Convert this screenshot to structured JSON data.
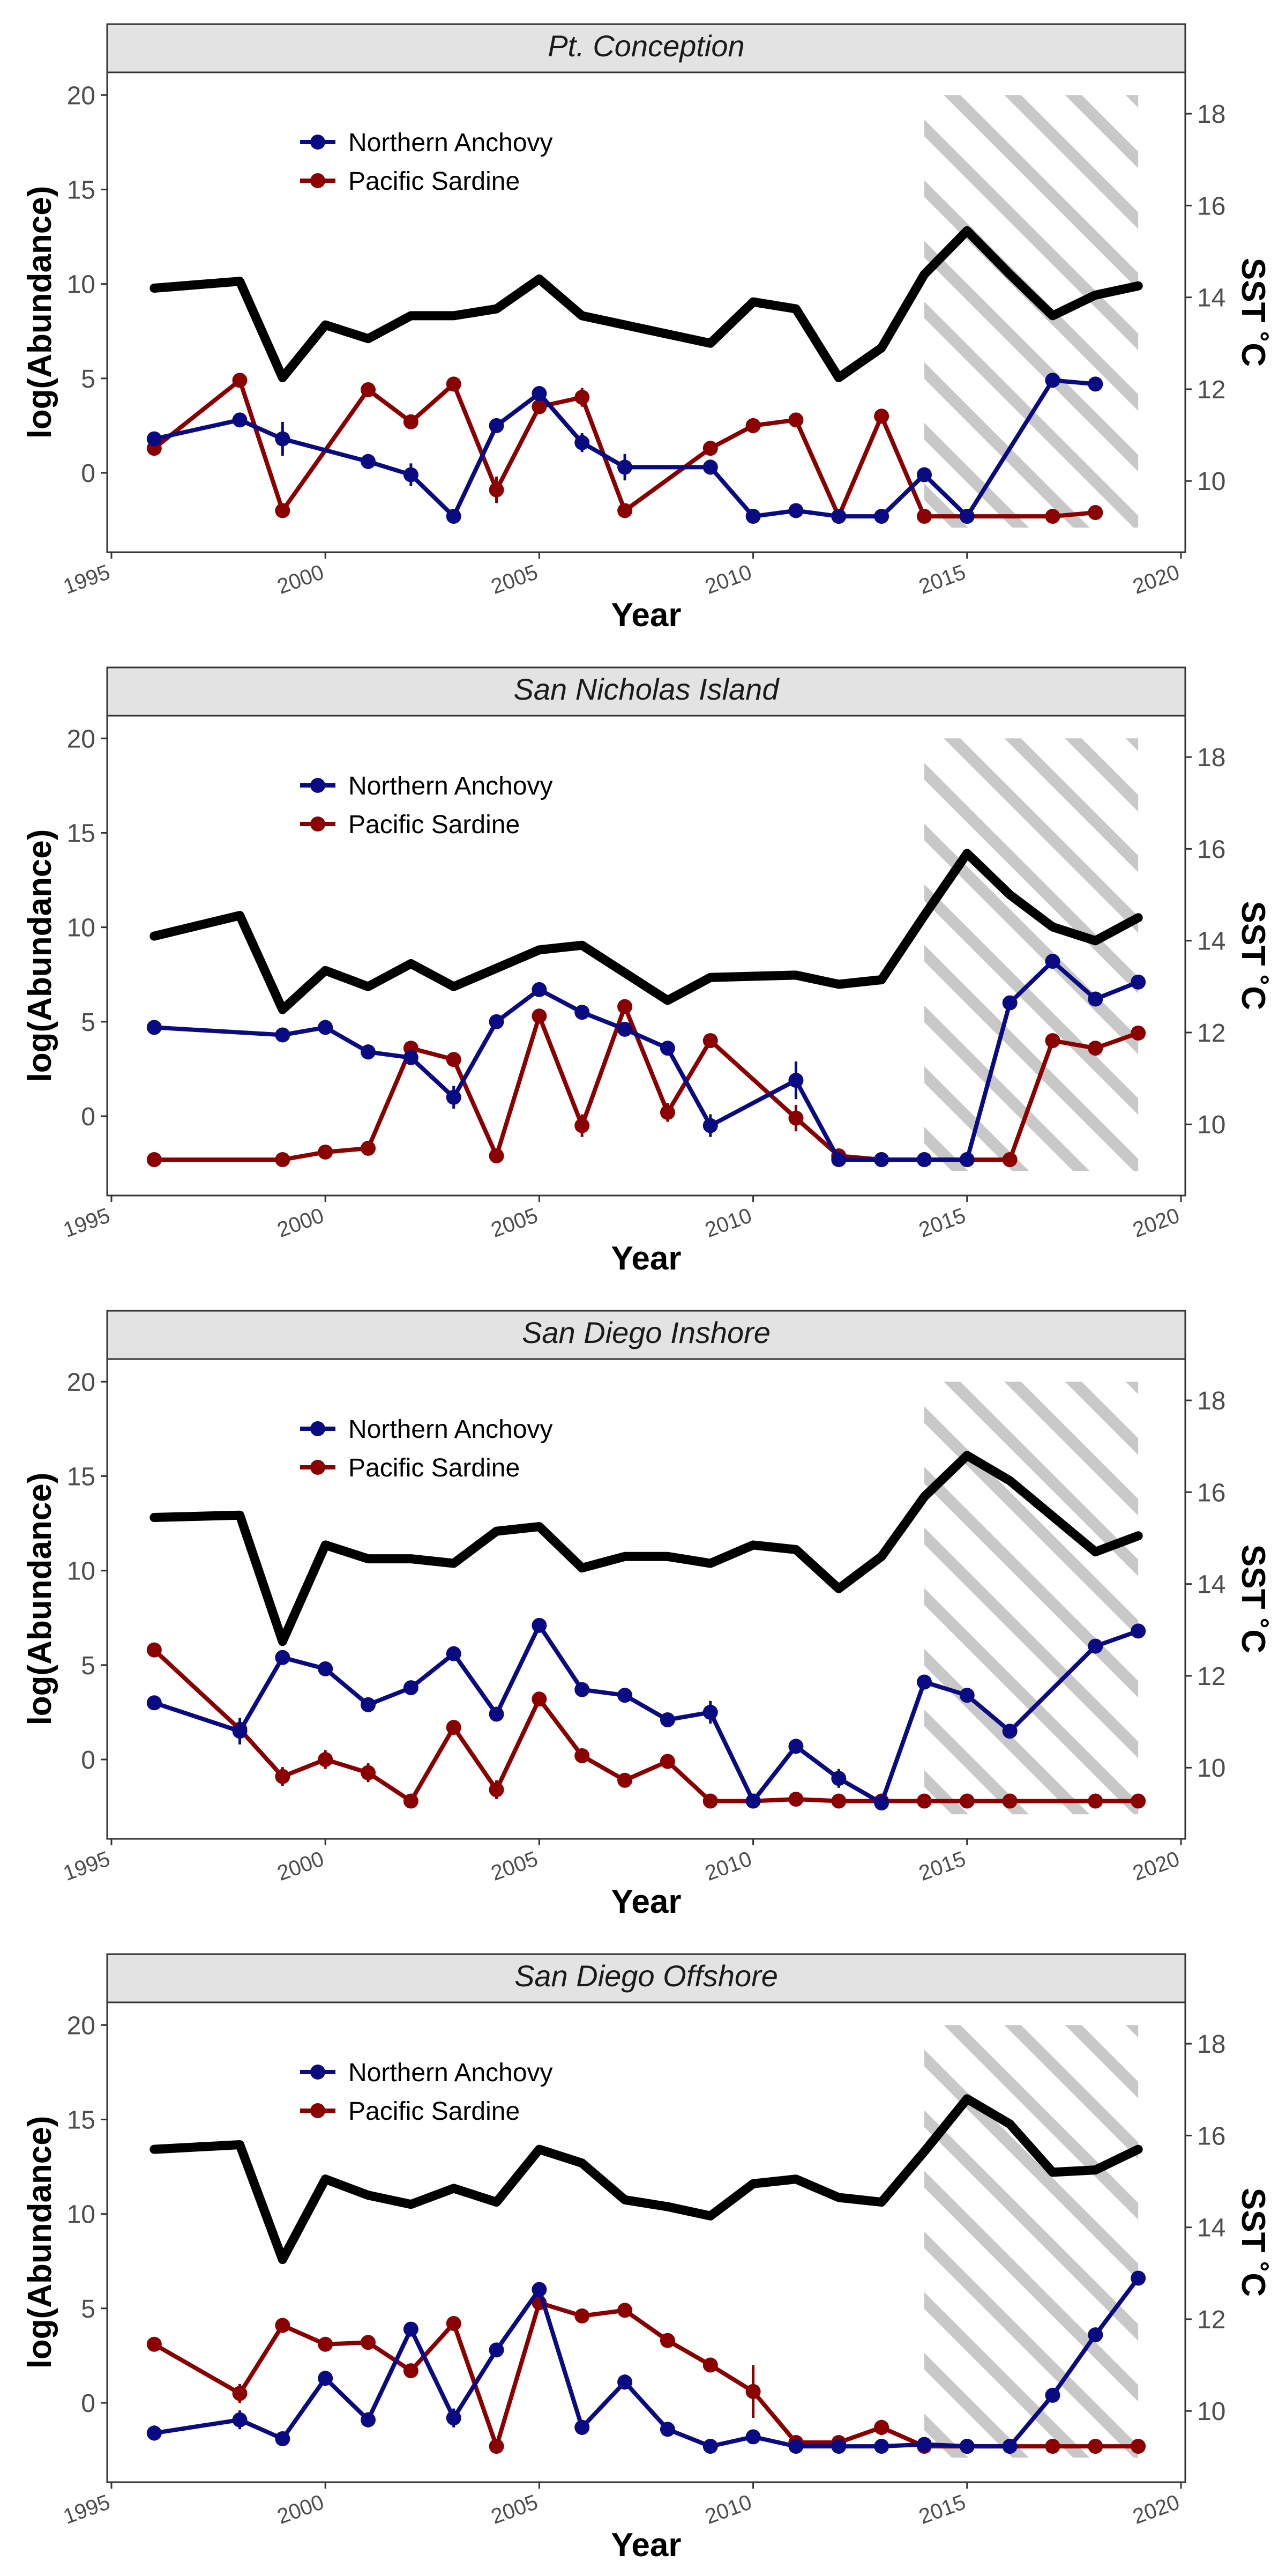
{
  "x_axis": {
    "label": "Year",
    "ticks": [
      1995,
      2000,
      2005,
      2010,
      2015,
      2020
    ]
  },
  "y_axis_left": {
    "label": "log(Abundance)",
    "ticks": [
      0,
      5,
      10,
      15,
      20
    ]
  },
  "y_axis_right": {
    "label": "SST ˚C",
    "ticks": [
      10,
      12,
      14,
      16,
      18
    ]
  },
  "colors": {
    "anchovy": "#0a0a82",
    "sardine": "#8b0000",
    "sst": "#000000",
    "strip": "#e3e3e3",
    "hatch": "#c8c8c8"
  },
  "chart_data": [
    {
      "type": "line",
      "title": "Pt. Conception",
      "xlabel": "Year",
      "ylabel": "log(Abundance)",
      "y2label": "SST ˚C",
      "xlim": [
        1994.9,
        2020.1
      ],
      "ylim": [
        -4.2,
        21.2
      ],
      "y2lim": [
        8.45,
        18.9
      ],
      "hatched_period": [
        2014,
        2019
      ],
      "legend_position": "top-left",
      "series": [
        {
          "name": "Northern Anchovy",
          "axis": "left",
          "x": [
            1996,
            1998,
            1999,
            2001,
            2002,
            2003,
            2004,
            2005,
            2006,
            2007,
            2009,
            2010,
            2011,
            2012,
            2013,
            2014,
            2015,
            2017,
            2018
          ],
          "values": [
            1.8,
            2.8,
            1.8,
            0.6,
            -0.1,
            -2.3,
            2.5,
            4.2,
            1.6,
            0.3,
            0.3,
            -2.3,
            -2.0,
            -2.3,
            -2.3,
            -0.1,
            -2.3,
            4.9,
            4.7
          ],
          "err": [
            0.2,
            0.2,
            0.9,
            0.4,
            0.6,
            0.1,
            0.3,
            0.3,
            0.5,
            0.7,
            0.4,
            0.1,
            0.2,
            0.1,
            0.1,
            0.2,
            0.1,
            0.2,
            0.2
          ]
        },
        {
          "name": "Pacific Sardine",
          "axis": "left",
          "x": [
            1996,
            1998,
            1999,
            2001,
            2002,
            2003,
            2004,
            2005,
            2006,
            2007,
            2009,
            2010,
            2011,
            2012,
            2013,
            2014,
            2015,
            2017,
            2018
          ],
          "values": [
            1.3,
            4.9,
            -2.0,
            4.4,
            2.7,
            4.7,
            -0.9,
            3.5,
            4.0,
            -2.0,
            1.3,
            2.5,
            2.8,
            -2.3,
            3.0,
            -2.3,
            -2.3,
            -2.3,
            -2.1
          ],
          "err": [
            0.3,
            0.2,
            0.2,
            0.2,
            0.2,
            0.2,
            0.7,
            0.3,
            0.5,
            0.2,
            0.4,
            0.4,
            0.2,
            0.1,
            0.2,
            0.1,
            0.1,
            0.1,
            0.2
          ]
        },
        {
          "name": "",
          "axis": "right",
          "x": [
            1996,
            1998,
            1999,
            2000,
            2001,
            2002,
            2003,
            2004,
            2005,
            2006,
            2007,
            2008,
            2009,
            2010,
            2011,
            2012,
            2013,
            2014,
            2015,
            2016,
            2017,
            2018,
            2019
          ],
          "values": [
            14.2,
            14.35,
            12.25,
            13.4,
            13.1,
            13.6,
            13.6,
            13.75,
            14.4,
            13.6,
            13.4,
            13.2,
            13.0,
            13.9,
            13.75,
            12.25,
            12.9,
            14.5,
            15.45,
            14.5,
            13.6,
            14.05,
            14.25
          ]
        }
      ]
    },
    {
      "type": "line",
      "title": "San Nicholas Island",
      "xlabel": "Year",
      "ylabel": "log(Abundance)",
      "y2label": "SST ˚C",
      "xlim": [
        1994.9,
        2020.1
      ],
      "ylim": [
        -4.2,
        21.2
      ],
      "y2lim": [
        8.45,
        18.9
      ],
      "hatched_period": [
        2014,
        2019
      ],
      "legend_position": "top-left",
      "series": [
        {
          "name": "Northern Anchovy",
          "axis": "left",
          "x": [
            1996,
            1999,
            2000,
            2001,
            2002,
            2003,
            2004,
            2005,
            2006,
            2007,
            2008,
            2009,
            2011,
            2012,
            2013,
            2014,
            2015,
            2016,
            2017,
            2018,
            2019
          ],
          "values": [
            4.7,
            4.3,
            4.7,
            3.4,
            3.1,
            1.0,
            5.0,
            6.7,
            5.5,
            4.6,
            3.6,
            -0.5,
            1.9,
            -2.3,
            -2.3,
            -2.3,
            -2.3,
            6.0,
            8.2,
            6.2,
            7.1
          ],
          "err": [
            0.2,
            0.2,
            0.2,
            0.4,
            0.3,
            0.6,
            0.2,
            0.2,
            0.2,
            0.3,
            0.3,
            0.6,
            1.0,
            0.1,
            0.1,
            0.1,
            0.1,
            0.2,
            0.3,
            0.2,
            0.2
          ]
        },
        {
          "name": "Pacific Sardine",
          "axis": "left",
          "x": [
            1996,
            1999,
            2000,
            2001,
            2002,
            2003,
            2004,
            2005,
            2006,
            2007,
            2008,
            2009,
            2011,
            2012,
            2013,
            2014,
            2015,
            2016,
            2017,
            2018,
            2019
          ],
          "values": [
            -2.3,
            -2.3,
            -1.9,
            -1.7,
            3.6,
            3.0,
            -2.1,
            5.3,
            -0.5,
            5.8,
            0.2,
            4.0,
            -0.1,
            -2.1,
            -2.3,
            -2.3,
            -2.3,
            -2.3,
            4.0,
            3.6,
            4.4
          ],
          "err": [
            0.1,
            0.1,
            0.3,
            0.3,
            0.2,
            0.2,
            0.2,
            0.2,
            0.6,
            0.3,
            0.5,
            0.3,
            0.7,
            0.2,
            0.1,
            0.1,
            0.1,
            0.1,
            0.2,
            0.2,
            0.2
          ]
        },
        {
          "name": "",
          "axis": "right",
          "x": [
            1996,
            1998,
            1999,
            2000,
            2001,
            2002,
            2003,
            2004,
            2005,
            2006,
            2007,
            2008,
            2009,
            2011,
            2012,
            2013,
            2014,
            2015,
            2016,
            2017,
            2018,
            2019
          ],
          "values": [
            14.1,
            14.55,
            12.5,
            13.35,
            13.0,
            13.5,
            13.0,
            13.4,
            13.8,
            13.9,
            13.3,
            12.7,
            13.2,
            13.25,
            13.05,
            13.15,
            14.55,
            15.9,
            15.0,
            14.3,
            14.0,
            14.5
          ]
        }
      ]
    },
    {
      "type": "line",
      "title": "San Diego Inshore",
      "xlabel": "Year",
      "ylabel": "log(Abundance)",
      "y2label": "SST ˚C",
      "xlim": [
        1994.9,
        2020.1
      ],
      "ylim": [
        -4.2,
        21.2
      ],
      "y2lim": [
        8.45,
        18.9
      ],
      "hatched_period": [
        2014,
        2019
      ],
      "legend_position": "top-left",
      "series": [
        {
          "name": "Northern Anchovy",
          "axis": "left",
          "x": [
            1996,
            1998,
            1999,
            2000,
            2001,
            2002,
            2003,
            2004,
            2005,
            2006,
            2007,
            2008,
            2009,
            2010,
            2011,
            2012,
            2013,
            2014,
            2015,
            2016,
            2018,
            2019
          ],
          "values": [
            3.0,
            1.5,
            5.4,
            4.8,
            2.9,
            3.8,
            5.6,
            2.4,
            7.1,
            3.7,
            3.4,
            2.1,
            2.5,
            -2.2,
            0.7,
            -1.0,
            -2.3,
            4.1,
            3.4,
            1.5,
            6.0,
            6.8
          ],
          "err": [
            0.2,
            0.7,
            0.2,
            0.2,
            0.2,
            0.3,
            0.2,
            0.2,
            0.2,
            0.2,
            0.2,
            0.2,
            0.6,
            0.2,
            0.4,
            0.5,
            0.1,
            0.2,
            0.2,
            0.2,
            0.2,
            0.2
          ]
        },
        {
          "name": "Pacific Sardine",
          "axis": "left",
          "x": [
            1996,
            1998,
            1999,
            2000,
            2001,
            2002,
            2003,
            2004,
            2005,
            2006,
            2007,
            2008,
            2009,
            2010,
            2011,
            2012,
            2013,
            2014,
            2015,
            2016,
            2018,
            2019
          ],
          "values": [
            5.8,
            1.6,
            -0.9,
            0.0,
            -0.7,
            -2.2,
            1.7,
            -1.6,
            3.2,
            0.2,
            -1.1,
            -0.1,
            -2.2,
            -2.2,
            -2.1,
            -2.2,
            -2.2,
            -2.2,
            -2.2,
            -2.2,
            -2.2,
            -2.2
          ],
          "err": [
            0.2,
            0.2,
            0.5,
            0.5,
            0.5,
            0.2,
            0.2,
            0.5,
            0.2,
            0.3,
            0.3,
            0.2,
            0.1,
            0.1,
            0.1,
            0.1,
            0.1,
            0.1,
            0.1,
            0.1,
            0.1,
            0.1
          ]
        },
        {
          "name": "",
          "axis": "right",
          "x": [
            1996,
            1998,
            1999,
            2000,
            2001,
            2002,
            2003,
            2004,
            2005,
            2006,
            2007,
            2008,
            2009,
            2010,
            2011,
            2012,
            2013,
            2014,
            2015,
            2016,
            2018,
            2019
          ],
          "values": [
            15.45,
            15.5,
            12.75,
            14.85,
            14.55,
            14.55,
            14.45,
            15.15,
            15.25,
            14.35,
            14.6,
            14.6,
            14.45,
            14.85,
            14.75,
            13.9,
            14.6,
            15.9,
            16.8,
            16.25,
            14.7,
            15.05
          ]
        }
      ]
    },
    {
      "type": "line",
      "title": "San Diego Offshore",
      "xlabel": "Year",
      "ylabel": "log(Abundance)",
      "y2label": "SST ˚C",
      "xlim": [
        1994.9,
        2020.1
      ],
      "ylim": [
        -4.2,
        21.2
      ],
      "y2lim": [
        8.45,
        18.9
      ],
      "hatched_period": [
        2014,
        2019
      ],
      "legend_position": "top-left",
      "series": [
        {
          "name": "Northern Anchovy",
          "axis": "left",
          "x": [
            1996,
            1998,
            1999,
            2000,
            2001,
            2002,
            2003,
            2004,
            2005,
            2006,
            2007,
            2008,
            2009,
            2010,
            2011,
            2012,
            2013,
            2014,
            2015,
            2016,
            2017,
            2018,
            2019
          ],
          "values": [
            -1.6,
            -0.9,
            -1.9,
            1.3,
            -0.9,
            3.9,
            -0.8,
            2.8,
            6.0,
            -1.3,
            1.1,
            -1.4,
            -2.3,
            -1.8,
            -2.3,
            -2.3,
            -2.3,
            -2.2,
            -2.3,
            -2.3,
            0.4,
            3.6,
            6.6
          ],
          "err": [
            0.4,
            0.5,
            0.2,
            0.4,
            0.4,
            0.2,
            0.5,
            0.2,
            0.2,
            0.4,
            0.4,
            0.2,
            0.1,
            0.3,
            0.1,
            0.1,
            0.1,
            0.1,
            0.1,
            0.1,
            0.2,
            0.2,
            0.2
          ]
        },
        {
          "name": "Pacific Sardine",
          "axis": "left",
          "x": [
            1996,
            1998,
            1999,
            2000,
            2001,
            2002,
            2003,
            2004,
            2005,
            2006,
            2007,
            2008,
            2009,
            2010,
            2011,
            2012,
            2013,
            2014,
            2015,
            2016,
            2017,
            2018,
            2019
          ],
          "values": [
            3.1,
            0.5,
            4.1,
            3.1,
            3.2,
            1.7,
            4.2,
            -2.3,
            5.3,
            4.6,
            4.9,
            3.3,
            2.0,
            0.6,
            -2.1,
            -2.1,
            -1.3,
            -2.3,
            -2.3,
            -2.3,
            -2.3,
            -2.3,
            -2.3
          ],
          "err": [
            0.2,
            0.5,
            0.2,
            0.2,
            0.2,
            0.3,
            0.2,
            0.1,
            0.2,
            0.2,
            0.2,
            0.2,
            0.2,
            1.4,
            0.2,
            0.2,
            0.4,
            0.1,
            0.1,
            0.1,
            0.1,
            0.1,
            0.1
          ]
        },
        {
          "name": "",
          "axis": "right",
          "x": [
            1996,
            1998,
            1999,
            2000,
            2001,
            2002,
            2003,
            2004,
            2005,
            2006,
            2007,
            2008,
            2009,
            2010,
            2011,
            2012,
            2013,
            2014,
            2015,
            2016,
            2017,
            2018,
            2019
          ],
          "values": [
            15.7,
            15.8,
            13.3,
            15.05,
            14.7,
            14.5,
            14.85,
            14.55,
            15.7,
            15.4,
            14.6,
            14.45,
            14.25,
            14.95,
            15.05,
            14.65,
            14.55,
            15.65,
            16.8,
            16.25,
            15.2,
            15.25,
            15.7
          ]
        }
      ]
    }
  ]
}
